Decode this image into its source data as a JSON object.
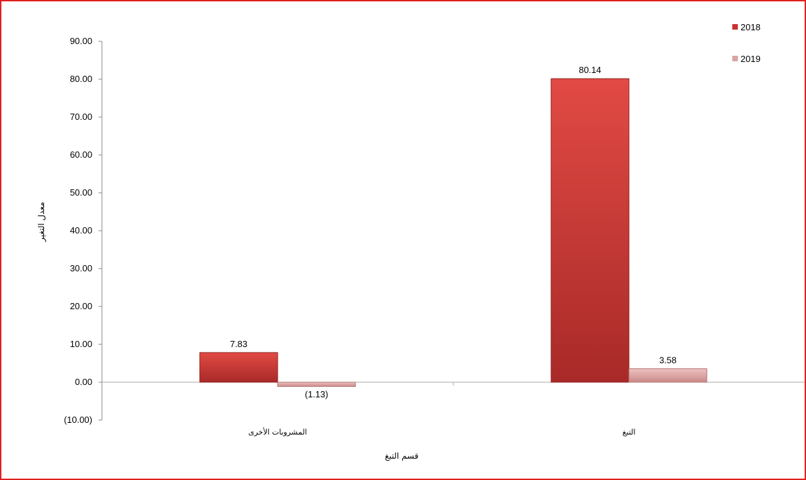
{
  "chart_data": {
    "type": "bar",
    "categories": [
      "المشروبات الأخرى",
      "التبغ"
    ],
    "series": [
      {
        "name": "2018",
        "values": [
          7.83,
          80.14
        ],
        "labels": [
          "7.83",
          "80.14"
        ],
        "color": "#d63b38"
      },
      {
        "name": "2019",
        "values": [
          -1.13,
          3.58
        ],
        "labels": [
          "(1.13)",
          "3.58"
        ],
        "color": "#e6b3b1"
      }
    ],
    "xlabel": "قسم التبغ",
    "ylabel": "معدل التغير",
    "ylim": [
      -10,
      90
    ],
    "yticks": [
      "(10.00)",
      "0.00",
      "10.00",
      "20.00",
      "30.00",
      "40.00",
      "50.00",
      "60.00",
      "70.00",
      "80.00",
      "90.00"
    ],
    "ytick_values": [
      -10,
      0,
      10,
      20,
      30,
      40,
      50,
      60,
      70,
      80,
      90
    ],
    "grid": false,
    "legend_position": "top-right"
  }
}
